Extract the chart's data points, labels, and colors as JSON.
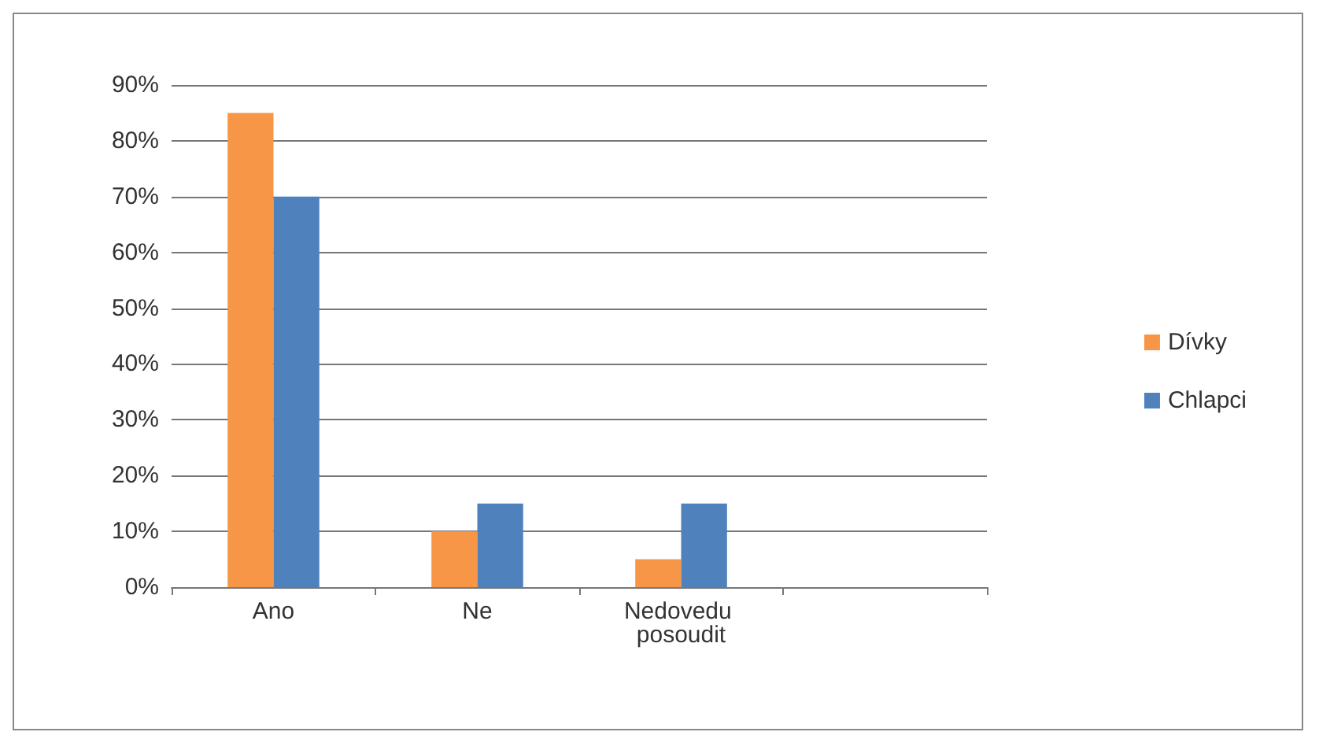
{
  "chart_data": {
    "type": "bar",
    "categories": [
      "Ano",
      "Ne",
      "Nedovedu posoudit",
      null
    ],
    "series": [
      {
        "name": "Dívky",
        "color": "#f79646",
        "values": [
          85,
          10,
          5,
          null
        ]
      },
      {
        "name": "Chlapci",
        "color": "#4f81bd",
        "values": [
          70,
          15,
          15,
          null
        ]
      }
    ],
    "ylim": [
      0,
      90
    ],
    "yticks": [
      {
        "value": 0,
        "label": "0%"
      },
      {
        "value": 10,
        "label": "10%"
      },
      {
        "value": 20,
        "label": "20%"
      },
      {
        "value": 30,
        "label": "30%"
      },
      {
        "value": 40,
        "label": "40%"
      },
      {
        "value": 50,
        "label": "50%"
      },
      {
        "value": 60,
        "label": "60%"
      },
      {
        "value": 70,
        "label": "70%"
      },
      {
        "value": 80,
        "label": "80%"
      },
      {
        "value": 90,
        "label": "90%"
      }
    ],
    "grid": "y",
    "legend": "right"
  }
}
